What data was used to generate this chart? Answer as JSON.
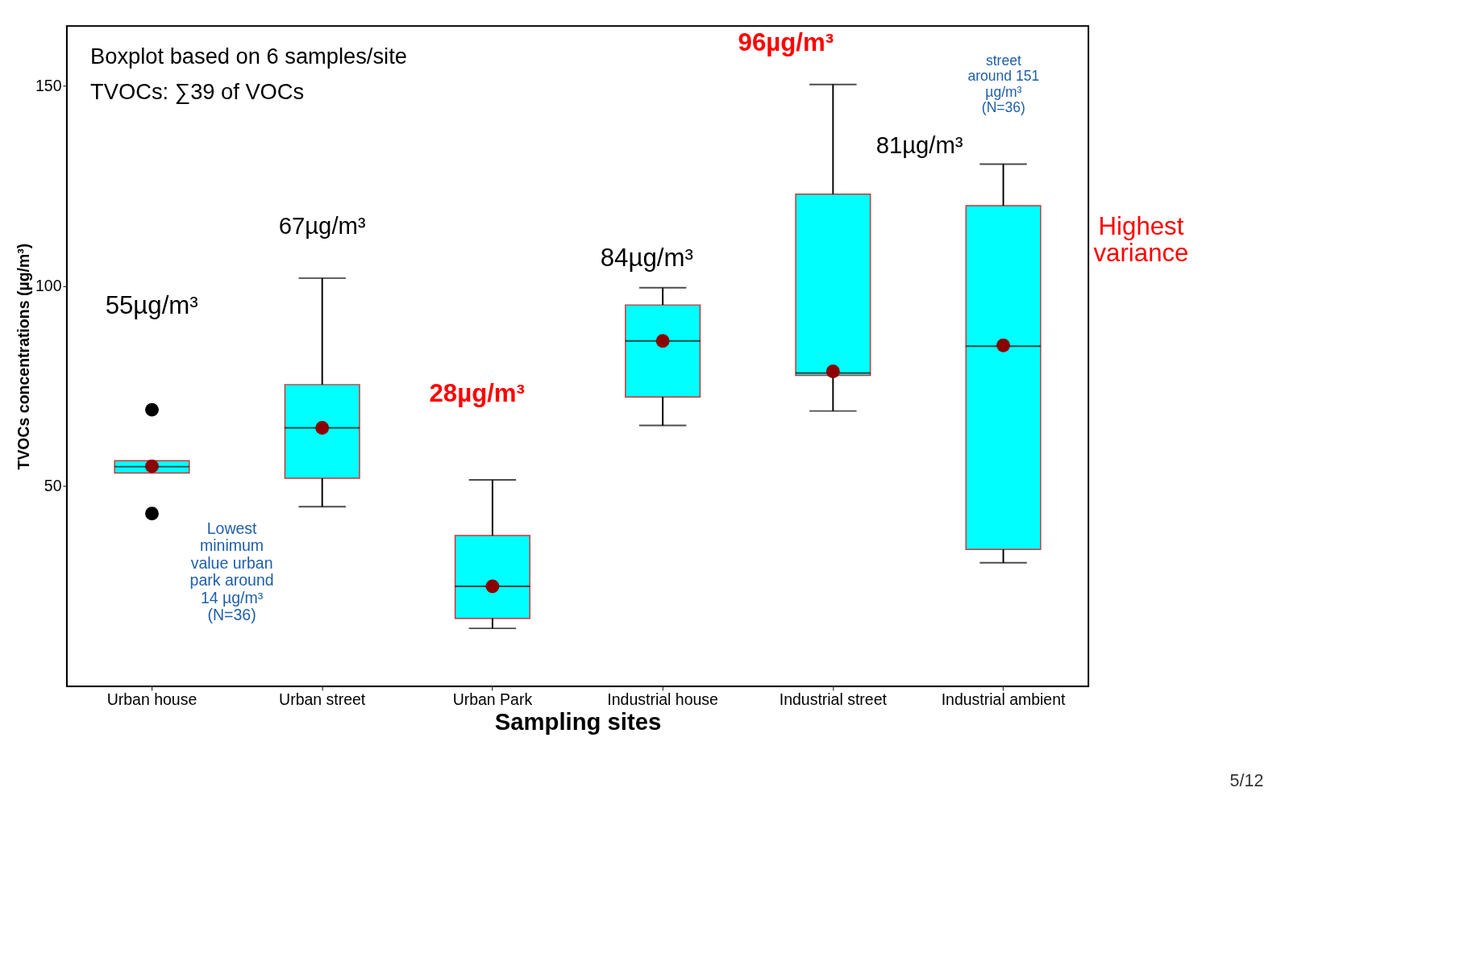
{
  "chart_data": {
    "type": "box",
    "xlabel": "Sampling sites",
    "ylabel": "TVOCs concentrations (µg/m³)",
    "categories": [
      "Urban house",
      "Urban street",
      "Urban Park",
      "Industrial house",
      "Industrial street",
      "Industrial ambient"
    ],
    "ylim": [
      0,
      165
    ],
    "yticks": [
      50,
      100,
      150
    ],
    "series": [
      {
        "color": "#00ffff",
        "boxes": [
          {
            "low": 53.3,
            "q1": 53.3,
            "median": 54.9,
            "q3": 56.4,
            "high": 56.4,
            "mean": 55,
            "outliers": [
              43.2,
              69.1
            ]
          },
          {
            "low": 44.9,
            "q1": 52,
            "median": 64.6,
            "q3": 75.4,
            "high": 102,
            "mean": 64.6
          },
          {
            "low": 14.5,
            "q1": 17,
            "median": 25,
            "q3": 37.7,
            "high": 51.6,
            "mean": 25
          },
          {
            "low": 65.2,
            "q1": 72.3,
            "median": 86.3,
            "q3": 95.3,
            "high": 99.6,
            "mean": 86.3
          },
          {
            "low": 68.8,
            "q1": 77.7,
            "median": 78.3,
            "q3": 123,
            "high": 150.4,
            "mean": 78.7
          },
          {
            "low": 30.9,
            "q1": 34.2,
            "median": 85,
            "q3": 120.1,
            "high": 130.5,
            "mean": 85.2
          }
        ]
      }
    ],
    "annotations": [
      "Boxplot based on 6 samples/site",
      "TVOCs: ∑39 of VOCs",
      "55µg/m³",
      "67µg/m³",
      "28µg/m³",
      "84µg/m³",
      "96µg/m³",
      "81µg/m³",
      "Highest\nvariance",
      "Lowest\nminimum\nvalue urban\npark around\n14 µg/m³\n(N=36)",
      "street\naround 151\nµg/m³\n(N=36)",
      "5/12"
    ]
  }
}
